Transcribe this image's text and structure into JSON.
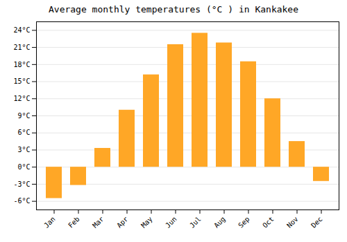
{
  "chart_data": {
    "type": "bar",
    "title": "Average monthly temperatures (°C ) in Kankakee",
    "categories": [
      "Jan",
      "Feb",
      "Mar",
      "Apr",
      "May",
      "Jun",
      "Jul",
      "Aug",
      "Sep",
      "Oct",
      "Nov",
      "Dec"
    ],
    "values": [
      -5.5,
      -3.2,
      3.3,
      10.0,
      16.2,
      21.5,
      23.5,
      21.8,
      18.5,
      12.0,
      4.5,
      -2.5
    ],
    "color": "#FFA726",
    "ylim": [
      -7.5,
      25.5
    ],
    "yticks": [
      {
        "value": -6,
        "label": "-6°C"
      },
      {
        "value": -3,
        "label": "-3°C"
      },
      {
        "value": 0,
        "label": "0°C"
      },
      {
        "value": 3,
        "label": "3°C"
      },
      {
        "value": 6,
        "label": "6°C"
      },
      {
        "value": 9,
        "label": "9°C"
      },
      {
        "value": 12,
        "label": "12°C"
      },
      {
        "value": 15,
        "label": "15°C"
      },
      {
        "value": 18,
        "label": "18°C"
      },
      {
        "value": 21,
        "label": "21°C"
      },
      {
        "value": 24,
        "label": "24°C"
      }
    ],
    "grid": true
  }
}
